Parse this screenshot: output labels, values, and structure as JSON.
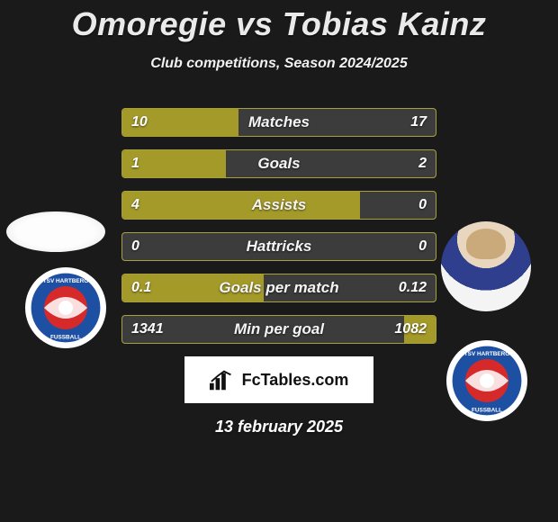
{
  "title": "Omoregie vs Tobias Kainz",
  "subtitle": "Club competitions, Season 2024/2025",
  "date": "13 february 2025",
  "watermark_text": "FcTables.com",
  "colors": {
    "bar_fill": "#a49a2a",
    "bar_bg": "#3c3c3c",
    "bar_border": "#a7a13b",
    "page_bg": "#1a1a1a"
  },
  "crest": {
    "top_text": "TSV HARTBERG",
    "bottom_text": "FUSSBALL",
    "outer_color": "#1d4fa3",
    "inner_color": "#d62a2a",
    "stripe_color": "#ffffff"
  },
  "rows": [
    {
      "label": "Matches",
      "left_val": "10",
      "right_val": "17",
      "left_pct": 37,
      "right_pct": 0
    },
    {
      "label": "Goals",
      "left_val": "1",
      "right_val": "2",
      "left_pct": 33,
      "right_pct": 0
    },
    {
      "label": "Assists",
      "left_val": "4",
      "right_val": "0",
      "left_pct": 76,
      "right_pct": 0
    },
    {
      "label": "Hattricks",
      "left_val": "0",
      "right_val": "0",
      "left_pct": 0,
      "right_pct": 0
    },
    {
      "label": "Goals per match",
      "left_val": "0.1",
      "right_val": "0.12",
      "left_pct": 45,
      "right_pct": 0
    },
    {
      "label": "Min per goal",
      "left_val": "1341",
      "right_val": "1082",
      "left_pct": 0,
      "right_pct": 10
    }
  ]
}
